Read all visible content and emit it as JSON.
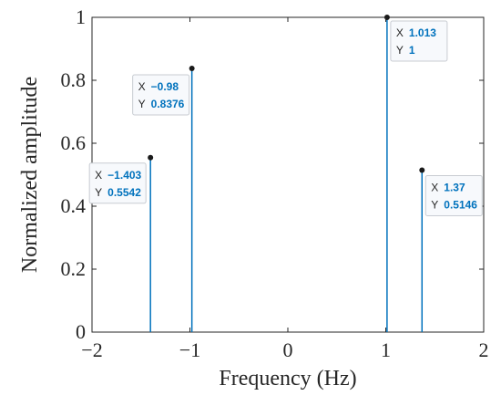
{
  "chart_data": {
    "type": "stem",
    "title": "",
    "xlabel": "Frequency (Hz)",
    "ylabel": "Normalized amplitude",
    "xlim": [
      -2,
      2
    ],
    "ylim": [
      0,
      1
    ],
    "xticks": [
      -2,
      -1,
      0,
      1,
      2
    ],
    "yticks": [
      0,
      0.2,
      0.4,
      0.6,
      0.8,
      1
    ],
    "ytick_labels": [
      "0",
      "0.2",
      "0.4",
      "0.6",
      "0.8",
      "1"
    ],
    "xtick_labels": [
      "−2",
      "−1",
      "0",
      "1",
      "2"
    ],
    "grid": false,
    "line_color": "#0072bd",
    "points": [
      {
        "x": -1.403,
        "y": 0.5542,
        "x_label": "−1.403",
        "y_label": "0.5542"
      },
      {
        "x": -0.98,
        "y": 0.8376,
        "x_label": "−0.98",
        "y_label": "0.8376"
      },
      {
        "x": 1.013,
        "y": 1,
        "x_label": "1.013",
        "y_label": "1"
      },
      {
        "x": 1.37,
        "y": 0.5146,
        "x_label": "1.37",
        "y_label": "0.5146"
      }
    ],
    "datatip_keys": {
      "x": "X",
      "y": "Y"
    }
  }
}
